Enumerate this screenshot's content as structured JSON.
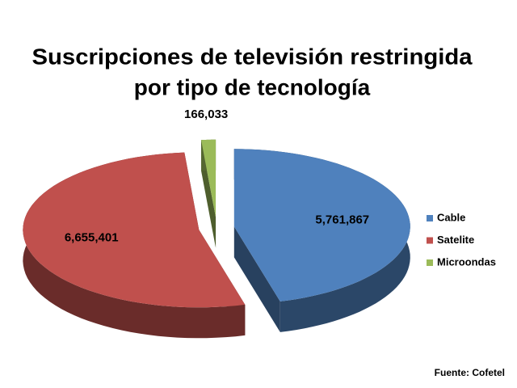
{
  "chart_data": {
    "type": "pie3d",
    "title": [
      "Suscripciones de televisión restringida",
      "por tipo de tecnología"
    ],
    "categories": [
      "Cable",
      "Satelite",
      "Microondas"
    ],
    "values": [
      5761867,
      6655401,
      166033
    ],
    "value_labels": [
      "5,761,867",
      "6,655,401",
      "166,033"
    ],
    "colors": [
      "#4f81bd",
      "#c0504d",
      "#9bbb59"
    ],
    "legend": "right",
    "source": "Fuente: Cofetel"
  }
}
